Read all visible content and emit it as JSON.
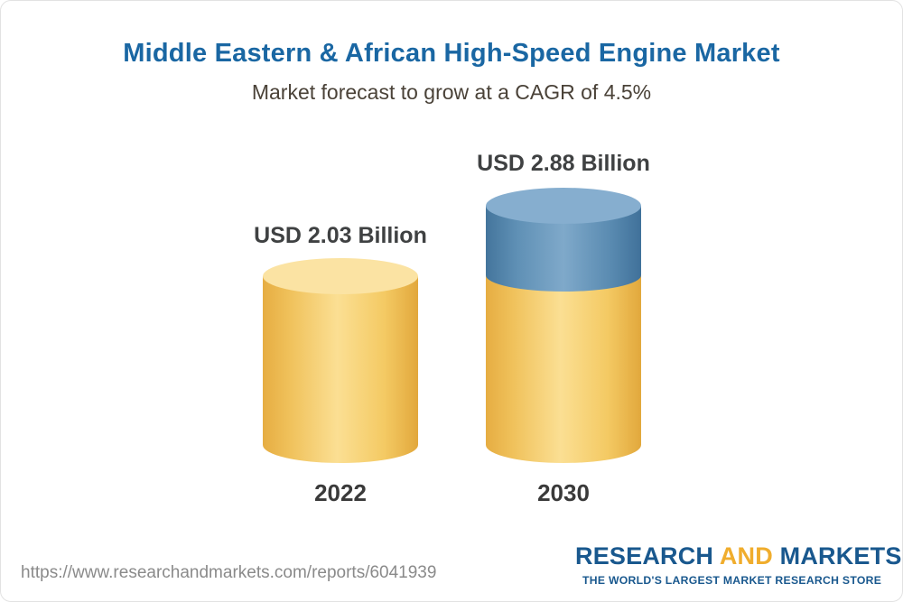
{
  "header": {
    "title": "Middle Eastern & African High-Speed Engine Market",
    "subtitle": "Market forecast to grow at a CAGR of 4.5%"
  },
  "chart_data": {
    "type": "bar",
    "style": "3d-cylinder",
    "title": "Middle Eastern & African High-Speed Engine Market",
    "subtitle": "Market forecast to grow at a CAGR of 4.5%",
    "cagr_percent": 4.5,
    "unit": "USD Billion",
    "categories": [
      "2022",
      "2030"
    ],
    "values": [
      2.03,
      2.88
    ],
    "value_labels": [
      "USD 2.03 Billion",
      "USD 2.88 Billion"
    ],
    "axes": "none",
    "grid": false,
    "legend_position": "none",
    "colors": {
      "base_segment": "#f6cf74",
      "growth_segment": "#6b9ec5",
      "title": "#1a67a3",
      "label_text": "#3f4142"
    },
    "notes": "2030 cylinder is yellow base with blue growth segment stacked on top"
  },
  "footer": {
    "url": "https://www.researchandmarkets.com/reports/6041939",
    "logo": {
      "part1": "RESEARCH",
      "part2": "AND",
      "part3": "MARKETS",
      "tagline": "THE WORLD'S LARGEST MARKET RESEARCH STORE",
      "brand_blue": "#19588e",
      "brand_gold": "#f0ad2d"
    }
  }
}
